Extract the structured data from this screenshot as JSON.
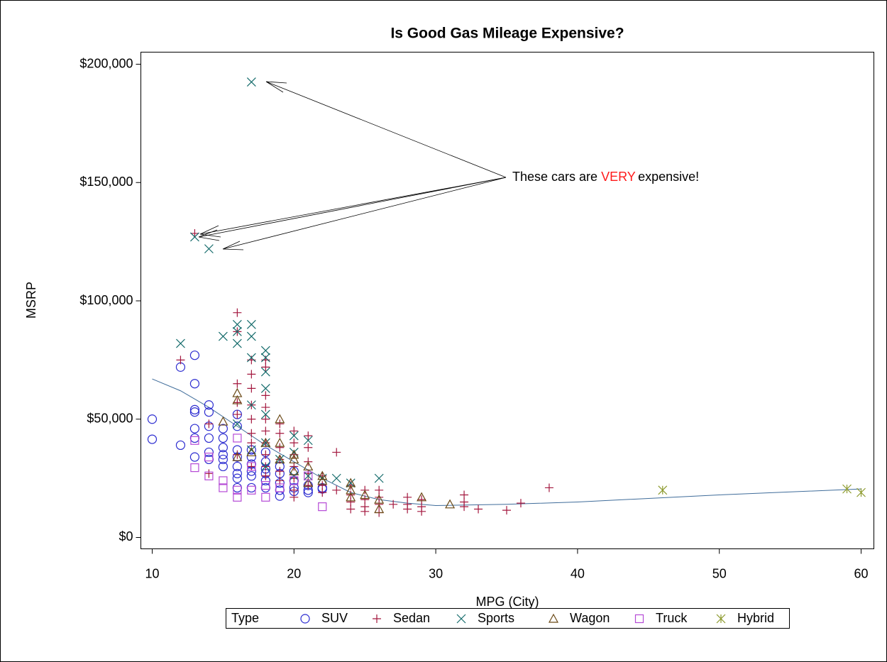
{
  "chart_data": {
    "type": "scatter",
    "title": "Is Good Gas Mileage Expensive?",
    "x_label": "MPG (City)",
    "y_label": "MSRP",
    "legend_title": "Type",
    "legend_position": "bottom",
    "xlim": [
      9.2,
      60.9
    ],
    "xticks": [
      10,
      20,
      30,
      40,
      50,
      60
    ],
    "ylim": [
      -4800,
      205100
    ],
    "yticks": [
      {
        "value": 0,
        "label": "$0"
      },
      {
        "value": 50000,
        "label": "$50,000"
      },
      {
        "value": 100000,
        "label": "$100,000"
      },
      {
        "value": 150000,
        "label": "$150,000"
      },
      {
        "value": 200000,
        "label": "$200,000"
      }
    ],
    "annotation": {
      "before": "These cars are",
      "emphasis": "VERY",
      "after": "expensive!",
      "emphasis_color": "#ff1a1a"
    },
    "series": [
      {
        "name": "SUV",
        "color": "#2b2bd0",
        "marker": "circle",
        "x": [
          10,
          10,
          12,
          12,
          13,
          13,
          13,
          13,
          13,
          13,
          13,
          14,
          14,
          14,
          14,
          14,
          14,
          15,
          15,
          15,
          15,
          15,
          15,
          16,
          16,
          16,
          16,
          16,
          16,
          16,
          16,
          17,
          17,
          17,
          17,
          17,
          17,
          18,
          18,
          18,
          18,
          18,
          18,
          19,
          19,
          19,
          19,
          19,
          20,
          20,
          20,
          20,
          21,
          21,
          21,
          22,
          22
        ],
        "values": [
          50000,
          41500,
          39000,
          72000,
          77000,
          65000,
          54000,
          53000,
          46000,
          42000,
          34000,
          56000,
          53000,
          47000,
          42000,
          36000,
          33000,
          46000,
          42000,
          38000,
          35000,
          33000,
          30000,
          52000,
          47000,
          37000,
          34000,
          30000,
          27000,
          25000,
          21000,
          37000,
          34000,
          31000,
          28000,
          26000,
          21000,
          36000,
          32000,
          29000,
          27000,
          24000,
          21000,
          30000,
          27000,
          23000,
          20000,
          17500,
          28000,
          24000,
          21000,
          19500,
          22000,
          20000,
          19000,
          21000,
          20500
        ]
      },
      {
        "name": "Sedan",
        "color": "#a3173e",
        "marker": "plus",
        "x": [
          12,
          13,
          14,
          14,
          16,
          16,
          16,
          16,
          16,
          16,
          17,
          17,
          17,
          17,
          17,
          17,
          17,
          17,
          18,
          18,
          18,
          18,
          18,
          18,
          18,
          18,
          18,
          18,
          19,
          19,
          19,
          19,
          19,
          19,
          20,
          20,
          20,
          20,
          20,
          20,
          20,
          21,
          21,
          21,
          21,
          21,
          22,
          22,
          22,
          23,
          23,
          24,
          24,
          24,
          24,
          25,
          25,
          25,
          25,
          26,
          26,
          26,
          26,
          27,
          28,
          28,
          28,
          29,
          29,
          29,
          32,
          32,
          32,
          33,
          35,
          36,
          38
        ],
        "values": [
          75000,
          128500,
          48000,
          27000,
          95000,
          87000,
          65000,
          57000,
          52000,
          35000,
          75000,
          69000,
          63000,
          56000,
          50000,
          44000,
          40000,
          30000,
          75000,
          72000,
          60000,
          55000,
          50000,
          45000,
          40000,
          35000,
          30000,
          26000,
          48000,
          44000,
          38000,
          33000,
          28000,
          24000,
          45000,
          40000,
          35000,
          30000,
          25000,
          20000,
          17000,
          43000,
          38000,
          32000,
          27000,
          22000,
          26000,
          22000,
          19000,
          36000,
          20000,
          22000,
          18000,
          15000,
          12000,
          20000,
          16000,
          13000,
          11000,
          20000,
          17000,
          14000,
          10500,
          14000,
          17000,
          14000,
          12000,
          16000,
          13000,
          11000,
          18000,
          15000,
          13000,
          12000,
          11500,
          14500,
          21000
        ]
      },
      {
        "name": "Sports",
        "color": "#146b6b",
        "marker": "x",
        "x": [
          12,
          13,
          14,
          15,
          16,
          16,
          16,
          16,
          17,
          17,
          17,
          17,
          17,
          17,
          18,
          18,
          18,
          18,
          18,
          18,
          18,
          19,
          20,
          20,
          20,
          21,
          21,
          22,
          23,
          24,
          26
        ],
        "values": [
          82000,
          127000,
          122000,
          85000,
          90000,
          87000,
          82000,
          48000,
          192500,
          90000,
          85000,
          76000,
          56000,
          37000,
          79000,
          76000,
          70000,
          63000,
          52000,
          40000,
          30000,
          33000,
          43000,
          36000,
          26000,
          41000,
          26000,
          25000,
          25000,
          23000,
          25000
        ]
      },
      {
        "name": "Wagon",
        "color": "#6b4a17",
        "marker": "triangle",
        "x": [
          15,
          16,
          16,
          16,
          17,
          18,
          19,
          19,
          19,
          20,
          20,
          20,
          21,
          21,
          22,
          22,
          24,
          24,
          24,
          25,
          26,
          26,
          29,
          31
        ],
        "values": [
          49000,
          61000,
          58000,
          34000,
          36000,
          40000,
          50000,
          40000,
          33000,
          35000,
          33000,
          28000,
          30000,
          23000,
          26000,
          24000,
          23000,
          20000,
          17000,
          18000,
          16000,
          12000,
          17000,
          14000
        ]
      },
      {
        "name": "Truck",
        "color": "#b54ad6",
        "marker": "square",
        "x": [
          13,
          13,
          14,
          14,
          15,
          15,
          16,
          16,
          16,
          17,
          17,
          18,
          18,
          19,
          20,
          21,
          22
        ],
        "values": [
          41000,
          29500,
          34000,
          26000,
          24000,
          21000,
          42000,
          20000,
          17000,
          30000,
          20000,
          22000,
          17000,
          21000,
          24000,
          26000,
          13000
        ]
      },
      {
        "name": "Hybrid",
        "color": "#8c9a2c",
        "marker": "asterisk",
        "x": [
          46,
          59,
          60
        ],
        "values": [
          20000,
          20500,
          19000
        ]
      }
    ],
    "fit": {
      "color": "#3f6c9a",
      "x": [
        10,
        12,
        14,
        16,
        18,
        20,
        22,
        24,
        26,
        28,
        30,
        35,
        40,
        50,
        60
      ],
      "values": [
        67000,
        62000,
        55000,
        47000,
        39000,
        32000,
        25000,
        19000,
        16000,
        14500,
        13500,
        14000,
        15000,
        18000,
        20500
      ]
    }
  }
}
